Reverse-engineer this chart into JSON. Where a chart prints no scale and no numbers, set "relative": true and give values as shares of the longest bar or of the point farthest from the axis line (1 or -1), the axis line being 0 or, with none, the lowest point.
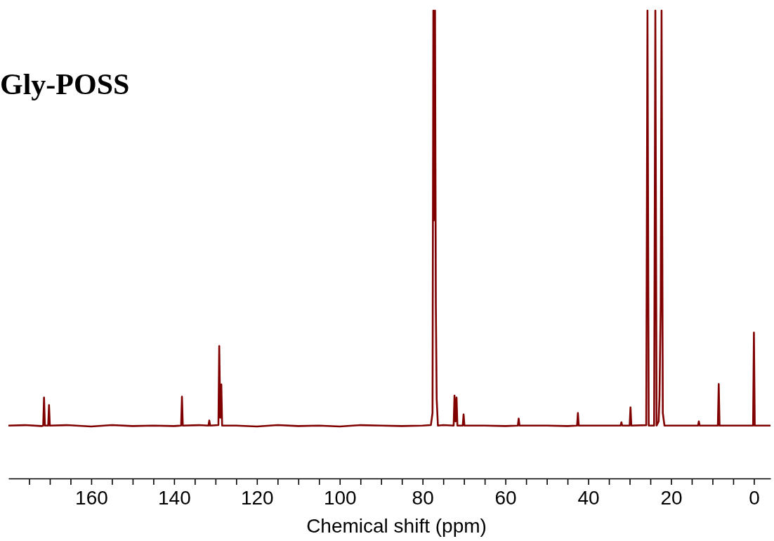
{
  "chart_data": {
    "type": "line",
    "title": "Gly-POSS",
    "xlabel": "Chemical shift (ppm)",
    "relative": true,
    "xlim": [
      180,
      -4
    ],
    "xticks": [
      {
        "value": 175,
        "label": null
      },
      {
        "value": 170,
        "label": null
      },
      {
        "value": 165,
        "label": null
      },
      160,
      {
        "value": 155,
        "label": null
      },
      {
        "value": 150,
        "label": null
      },
      {
        "value": 145,
        "label": null
      },
      140,
      {
        "value": 135,
        "label": null
      },
      {
        "value": 130,
        "label": null
      },
      {
        "value": 125,
        "label": null
      },
      120,
      {
        "value": 115,
        "label": null
      },
      {
        "value": 110,
        "label": null
      },
      {
        "value": 105,
        "label": null
      },
      100,
      {
        "value": 95,
        "label": null
      },
      {
        "value": 90,
        "label": null
      },
      {
        "value": 85,
        "label": null
      },
      80,
      {
        "value": 75,
        "label": null
      },
      {
        "value": 70,
        "label": null
      },
      {
        "value": 65,
        "label": null
      },
      60,
      {
        "value": 55,
        "label": null
      },
      {
        "value": 50,
        "label": null
      },
      {
        "value": 45,
        "label": null
      },
      40,
      {
        "value": 35,
        "label": null
      },
      {
        "value": 30,
        "label": null
      },
      {
        "value": 25,
        "label": null
      },
      20,
      {
        "value": 15,
        "label": null
      },
      {
        "value": 10,
        "label": null
      },
      {
        "value": 5,
        "label": null
      },
      0
    ],
    "marker": "none",
    "line_style": "solid",
    "series": [
      {
        "color": "#800000",
        "x": [
          180,
          176,
          172,
          171.6,
          171.4,
          171.2,
          170.4,
          170.2,
          170.0,
          166,
          160,
          155,
          150,
          145,
          140,
          138.3,
          138.1,
          137.9,
          134,
          131.7,
          131.5,
          131.3,
          129.3,
          129.1,
          128.85,
          128.6,
          128.4,
          125,
          120,
          115,
          110,
          105,
          100,
          95,
          90,
          85,
          80,
          78,
          77.6,
          77.4,
          77.2,
          77.0,
          76.8,
          76.6,
          76.3,
          75,
          72.5,
          72.3,
          72.05,
          71.8,
          71.6,
          70.3,
          70.1,
          69.9,
          65,
          60,
          57,
          56.8,
          56.6,
          50,
          45,
          42.7,
          42.5,
          42.3,
          35,
          32.2,
          32.0,
          31.8,
          30,
          29.8,
          29.6,
          26,
          25.7,
          25.4,
          24.1,
          23.8,
          23.5,
          23.0,
          22.8,
          22.5,
          22.3,
          22.0,
          21.6,
          18,
          13.5,
          13.3,
          13.1,
          8.7,
          8.5,
          8.3,
          4,
          0.2,
          0,
          -0.2,
          -4
        ],
        "values": [
          0.113,
          0.114,
          0.112,
          0.113,
          0.173,
          0.113,
          0.113,
          0.157,
          0.113,
          0.114,
          0.111,
          0.114,
          0.112,
          0.113,
          0.112,
          0.113,
          0.175,
          0.113,
          0.114,
          0.113,
          0.124,
          0.113,
          0.114,
          0.283,
          0.13,
          0.201,
          0.113,
          0.113,
          0.111,
          0.114,
          0.112,
          0.113,
          0.111,
          0.114,
          0.113,
          0.112,
          0.113,
          0.114,
          0.14,
          1,
          0.552,
          1,
          0.373,
          0.17,
          0.113,
          0.114,
          0.113,
          0.177,
          0.122,
          0.173,
          0.113,
          0.113,
          0.137,
          0.113,
          0.113,
          0.112,
          0.113,
          0.128,
          0.113,
          0.113,
          0.112,
          0.113,
          0.14,
          0.113,
          0.113,
          0.113,
          0.12,
          0.113,
          0.113,
          0.152,
          0.113,
          0.114,
          1,
          0.113,
          0.113,
          1,
          0.113,
          0.122,
          0.175,
          0.373,
          1,
          0.14,
          0.113,
          0.113,
          0.113,
          0.122,
          0.113,
          0.113,
          0.202,
          0.113,
          0.113,
          0.113,
          0.312,
          0.113,
          0.113
        ]
      }
    ]
  }
}
